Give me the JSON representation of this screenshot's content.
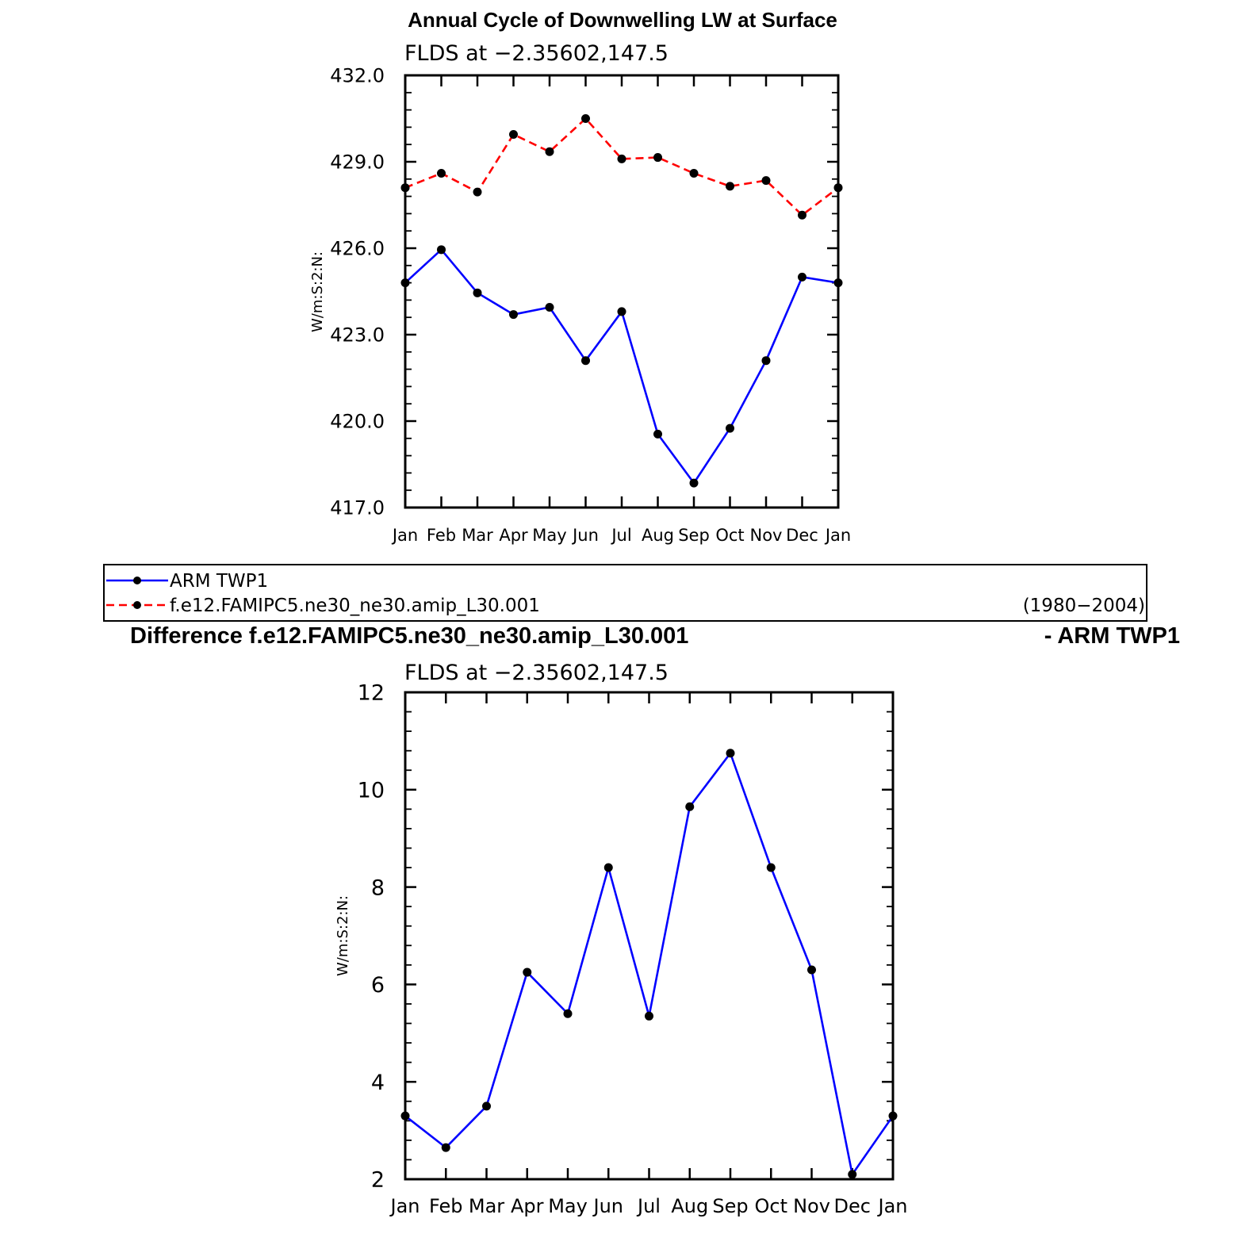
{
  "top_title": "Annual Cycle of Downwelling LW at Surface",
  "diff_title_left": "Difference f.e12.FAMIPC5.ne30_ne30.amip_L30.001",
  "diff_title_right": "- ARM TWP1",
  "legend": {
    "items": [
      {
        "label": "ARM TWP1",
        "color": "#0000ff",
        "dash": "solid"
      },
      {
        "label": "f.e12.FAMIPC5.ne30_ne30.amip_L30.001",
        "color": "#ff0000",
        "dash": "dashed"
      }
    ],
    "period": "(1980−2004)"
  },
  "chart_data": [
    {
      "type": "line",
      "subtitle": "FLDS at −2.35602,147.5",
      "xlabel": "",
      "ylabel": "W/m:S:2:N:",
      "categories": [
        "Jan",
        "Feb",
        "Mar",
        "Apr",
        "May",
        "Jun",
        "Jul",
        "Aug",
        "Sep",
        "Oct",
        "Nov",
        "Dec",
        "Jan"
      ],
      "ylim": [
        417.0,
        432.0
      ],
      "yticks": [
        "417.0",
        "420.0",
        "423.0",
        "426.0",
        "429.0",
        "432.0"
      ],
      "ytick_values": [
        417,
        420,
        423,
        426,
        429,
        432
      ],
      "series": [
        {
          "name": "ARM TWP1",
          "color": "#0000ff",
          "dash": "solid",
          "values": [
            424.8,
            425.95,
            424.45,
            423.7,
            423.95,
            422.1,
            423.8,
            419.55,
            417.85,
            419.75,
            422.1,
            425.0,
            424.8
          ]
        },
        {
          "name": "f.e12.FAMIPC5.ne30_ne30.amip_L30.001",
          "color": "#ff0000",
          "dash": "dashed",
          "values": [
            428.1,
            428.6,
            427.95,
            429.95,
            429.35,
            430.5,
            429.1,
            429.15,
            428.6,
            428.15,
            428.35,
            427.15,
            428.1
          ]
        }
      ]
    },
    {
      "type": "line",
      "subtitle": "FLDS at −2.35602,147.5",
      "xlabel": "",
      "ylabel": "W/m:S:2:N:",
      "categories": [
        "Jan",
        "Feb",
        "Mar",
        "Apr",
        "May",
        "Jun",
        "Jul",
        "Aug",
        "Sep",
        "Oct",
        "Nov",
        "Dec",
        "Jan"
      ],
      "ylim": [
        2,
        12
      ],
      "yticks": [
        "2",
        "4",
        "6",
        "8",
        "10",
        "12"
      ],
      "ytick_values": [
        2,
        4,
        6,
        8,
        10,
        12
      ],
      "series": [
        {
          "name": "",
          "color": "#0000ff",
          "dash": "solid",
          "values": [
            3.3,
            2.65,
            3.5,
            6.25,
            5.4,
            8.4,
            5.35,
            9.65,
            10.75,
            8.4,
            6.3,
            2.1,
            3.3
          ]
        }
      ]
    }
  ]
}
